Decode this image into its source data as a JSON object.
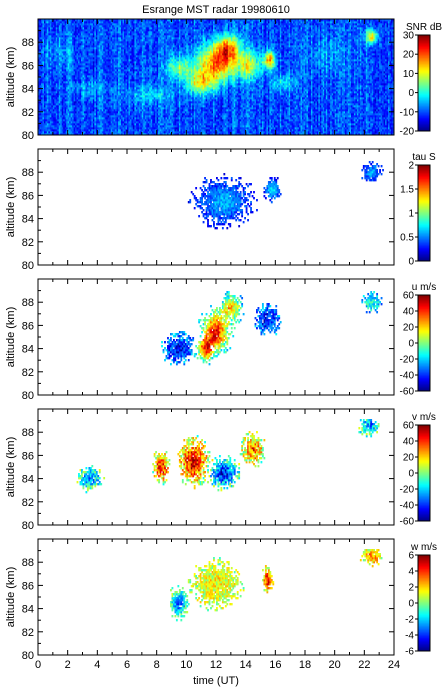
{
  "chart_data": [
    {
      "type": "heatmap",
      "title": "Esrange MST radar 19980610",
      "ylabel": "altitude (km)",
      "xlim": [
        0,
        24
      ],
      "ylim": [
        80,
        90
      ],
      "yticks": [
        80,
        82,
        84,
        86,
        88
      ],
      "colorbar": {
        "label": "SNR dB",
        "range": [
          -20,
          30
        ],
        "ticks": [
          -20,
          -10,
          0,
          10,
          20,
          30
        ]
      },
      "coverage": "full",
      "background_value": -10,
      "features": [
        {
          "t": 12.0,
          "alt": 86.2,
          "value": 18,
          "spread_t": 1.3,
          "spread_alt": 1.6
        },
        {
          "t": 12.8,
          "alt": 87.5,
          "value": 12,
          "spread_t": 0.8,
          "spread_alt": 1.2
        },
        {
          "t": 15.6,
          "alt": 86.5,
          "value": 15,
          "spread_t": 0.4,
          "spread_alt": 0.8
        },
        {
          "t": 11.0,
          "alt": 84.5,
          "value": 8,
          "spread_t": 1.0,
          "spread_alt": 1.0
        },
        {
          "t": 9.5,
          "alt": 85.8,
          "value": 5,
          "spread_t": 0.8,
          "spread_alt": 1.0
        },
        {
          "t": 14.2,
          "alt": 86.0,
          "value": 8,
          "spread_t": 0.8,
          "spread_alt": 1.2
        },
        {
          "t": 7.5,
          "alt": 83.5,
          "value": -3,
          "spread_t": 1.5,
          "spread_alt": 0.8
        },
        {
          "t": 3.5,
          "alt": 84.0,
          "value": -5,
          "spread_t": 1.0,
          "spread_alt": 0.8
        },
        {
          "t": 22.5,
          "alt": 88.5,
          "value": 12,
          "spread_t": 0.4,
          "spread_alt": 0.6
        },
        {
          "t": 16.5,
          "alt": 84.5,
          "value": -2,
          "spread_t": 0.8,
          "spread_alt": 0.8
        },
        {
          "t": 1.5,
          "alt": 87.0,
          "value": -6,
          "spread_t": 1.2,
          "spread_alt": 1.5
        },
        {
          "t": 19.5,
          "alt": 87.0,
          "value": -6,
          "spread_t": 1.5,
          "spread_alt": 1.5
        }
      ]
    },
    {
      "type": "heatmap",
      "ylabel": "altitude (km)",
      "xlim": [
        0,
        24
      ],
      "ylim": [
        80,
        90
      ],
      "yticks": [
        80,
        82,
        84,
        86,
        88
      ],
      "colorbar": {
        "label": "tau S",
        "range": [
          0,
          2
        ],
        "ticks": [
          0,
          0.5,
          1,
          1.5,
          2
        ]
      },
      "coverage": "sparse",
      "background_value": 0.25,
      "noise": 0.15,
      "features": [
        {
          "t": 12.5,
          "alt": 85.5,
          "value": 0.6,
          "spread_t": 1.5,
          "spread_alt": 1.5
        },
        {
          "t": 15.8,
          "alt": 86.5,
          "value": 0.7,
          "spread_t": 0.4,
          "spread_alt": 0.8
        },
        {
          "t": 22.5,
          "alt": 88.0,
          "value": 0.6,
          "spread_t": 0.5,
          "spread_alt": 0.6
        }
      ]
    },
    {
      "type": "heatmap",
      "ylabel": "altitude (km)",
      "xlim": [
        0,
        24
      ],
      "ylim": [
        80,
        90
      ],
      "yticks": [
        80,
        82,
        84,
        86,
        88
      ],
      "colorbar": {
        "label": "u m/s",
        "range": [
          -60,
          60
        ],
        "ticks": [
          -60,
          -40,
          -20,
          0,
          20,
          40,
          60
        ]
      },
      "coverage": "sparse",
      "background_value": -25,
      "noise": 15,
      "features": [
        {
          "t": 12.0,
          "alt": 85.5,
          "value": 45,
          "spread_t": 0.8,
          "spread_alt": 1.5
        },
        {
          "t": 11.3,
          "alt": 84.0,
          "value": 35,
          "spread_t": 0.5,
          "spread_alt": 1.0
        },
        {
          "t": 13.0,
          "alt": 87.5,
          "value": 20,
          "spread_t": 0.6,
          "spread_alt": 1.0
        },
        {
          "t": 15.5,
          "alt": 86.5,
          "value": -45,
          "spread_t": 0.6,
          "spread_alt": 1.0
        },
        {
          "t": 9.5,
          "alt": 84.0,
          "value": -45,
          "spread_t": 0.8,
          "spread_alt": 1.0
        },
        {
          "t": 22.5,
          "alt": 88.0,
          "value": -10,
          "spread_t": 0.5,
          "spread_alt": 0.6
        }
      ]
    },
    {
      "type": "heatmap",
      "ylabel": "altitude (km)",
      "xlim": [
        0,
        24
      ],
      "ylim": [
        80,
        90
      ],
      "yticks": [
        80,
        82,
        84,
        86,
        88
      ],
      "colorbar": {
        "label": "v m/s",
        "range": [
          -60,
          60
        ],
        "ticks": [
          -60,
          -40,
          -20,
          0,
          20,
          40,
          60
        ]
      },
      "coverage": "sparse",
      "background_value": 0,
      "noise": 20,
      "features": [
        {
          "t": 10.5,
          "alt": 85.5,
          "value": 50,
          "spread_t": 0.8,
          "spread_alt": 1.5
        },
        {
          "t": 8.3,
          "alt": 85.0,
          "value": 50,
          "spread_t": 0.4,
          "spread_alt": 1.0
        },
        {
          "t": 12.5,
          "alt": 84.5,
          "value": -45,
          "spread_t": 0.8,
          "spread_alt": 1.0
        },
        {
          "t": 14.5,
          "alt": 86.5,
          "value": 35,
          "spread_t": 0.6,
          "spread_alt": 1.0
        },
        {
          "t": 3.5,
          "alt": 84.0,
          "value": -30,
          "spread_t": 0.6,
          "spread_alt": 0.8
        },
        {
          "t": 22.3,
          "alt": 88.5,
          "value": -35,
          "spread_t": 0.5,
          "spread_alt": 0.6
        }
      ]
    },
    {
      "type": "heatmap",
      "ylabel": "altitude (km)",
      "xlabel": "time (UT)",
      "xlim": [
        0,
        24
      ],
      "ylim": [
        80,
        90
      ],
      "yticks": [
        80,
        82,
        84,
        86,
        88
      ],
      "xticks": [
        0,
        2,
        4,
        6,
        8,
        10,
        12,
        14,
        16,
        18,
        20,
        22,
        24
      ],
      "colorbar": {
        "label": "w m/s",
        "range": [
          -6,
          6
        ],
        "ticks": [
          -6,
          -4,
          -2,
          0,
          2,
          4,
          6
        ]
      },
      "coverage": "sparse",
      "background_value": 0.5,
      "noise": 1.5,
      "features": [
        {
          "t": 12.0,
          "alt": 86.0,
          "value": 1.5,
          "spread_t": 1.2,
          "spread_alt": 1.5
        },
        {
          "t": 15.5,
          "alt": 86.5,
          "value": 4.5,
          "spread_t": 0.3,
          "spread_alt": 0.8
        },
        {
          "t": 9.5,
          "alt": 84.5,
          "value": -3.5,
          "spread_t": 0.5,
          "spread_alt": 1.0
        },
        {
          "t": 22.5,
          "alt": 88.5,
          "value": 3.0,
          "spread_t": 0.5,
          "spread_alt": 0.6
        }
      ]
    }
  ]
}
